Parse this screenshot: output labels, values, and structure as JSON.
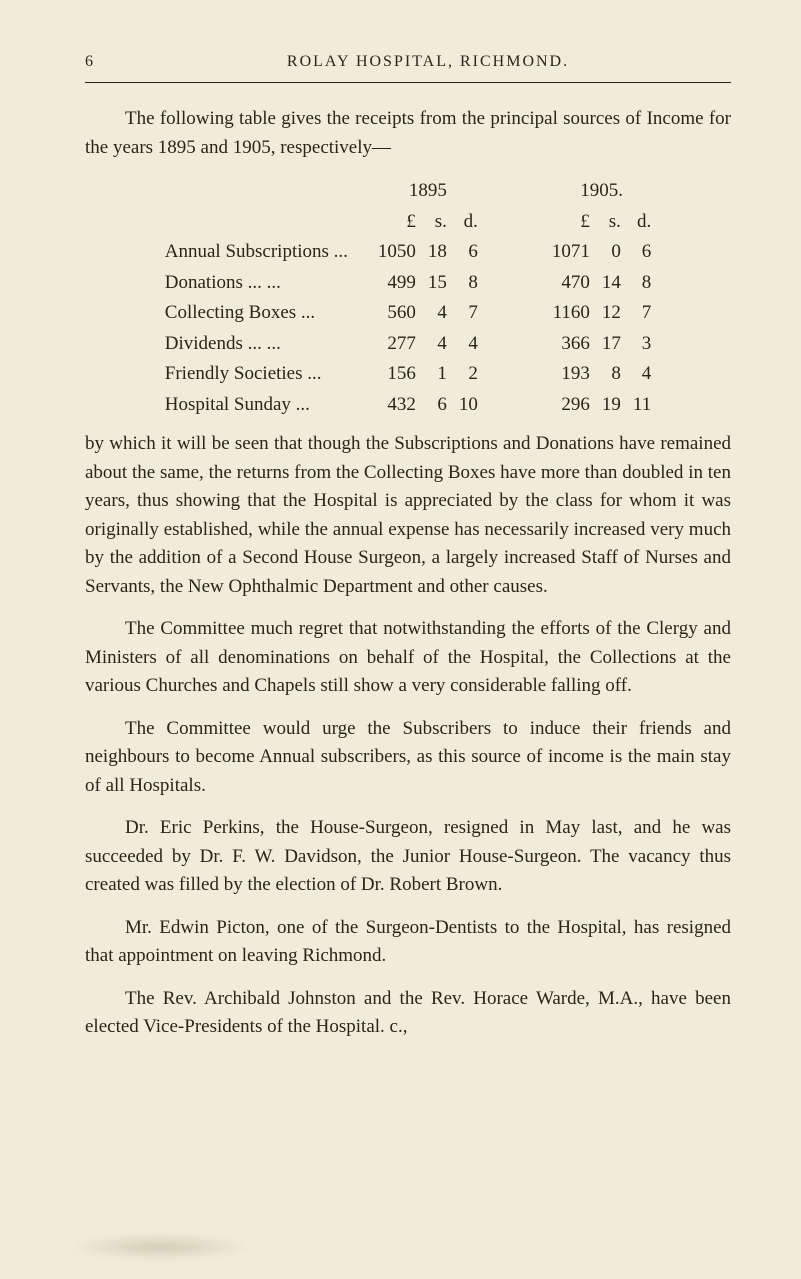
{
  "page_number": "6",
  "running_title": "ROLAY HOSPITAL, RICHMOND.",
  "intro": "The following table gives the receipts from the principal sources of Income for the years 1895 and 1905, respectively—",
  "table": {
    "year_a": "1895",
    "year_b": "1905.",
    "head_L": "£",
    "head_s": "s.",
    "head_d": "d.",
    "rows": [
      {
        "label": "Annual Subscriptions ...",
        "aL": "1050",
        "as": "18",
        "ad": "6",
        "bL": "1071",
        "bs": "0",
        "bd": "6"
      },
      {
        "label": "Donations   ...          ...",
        "aL": "499",
        "as": "15",
        "ad": "8",
        "bL": "470",
        "bs": "14",
        "bd": "8"
      },
      {
        "label": "Collecting Boxes       ...",
        "aL": "560",
        "as": "4",
        "ad": "7",
        "bL": "1160",
        "bs": "12",
        "bd": "7"
      },
      {
        "label": "Dividends   ...          ...",
        "aL": "277",
        "as": "4",
        "ad": "4",
        "bL": "366",
        "bs": "17",
        "bd": "3"
      },
      {
        "label": "Friendly Societies     ...",
        "aL": "156",
        "as": "1",
        "ad": "2",
        "bL": "193",
        "bs": "8",
        "bd": "4"
      },
      {
        "label": "Hospital Sunday        ...",
        "aL": "432",
        "as": "6",
        "ad": "10",
        "bL": "296",
        "bs": "19",
        "bd": "11"
      }
    ]
  },
  "para_after_table": "by which it will be seen that though the Subscriptions and Donations have remained about the same, the returns from the Collecting Boxes have more than doubled in ten years, thus showing that the Hospital is appreciated by the class for whom it was originally established, while the annual expense has necessarily increased very much by the addition of a Second House Surgeon, a largely increased Staff of Nurses and Servants, the New Ophthalmic Department and other causes.",
  "para2": "The Committee much regret that notwithstanding the efforts of the Clergy and Ministers of all denominations on behalf of the Hospital, the Collections at the various Churches and Chapels still show a very considerable falling off.",
  "para3": "The Committee would urge the Subscribers to induce their friends and neighbours to become Annual subscribers, as this source of income is the main stay of all Hospitals.",
  "para4": "Dr. Eric Perkins, the House-Surgeon, resigned in May last, and he was succeeded by Dr. F. W. Davidson, the Junior House-Surgeon. The vacancy thus created was filled by the election of Dr. Robert Brown.",
  "para5": "Mr. Edwin Picton, one of the Surgeon-Dentists to the Hospital, has resigned that appointment on leaving Richmond.",
  "para6": "The Rev. Archibald Johnston and the Rev. Horace Warde, M.A., have been elected Vice-Presidents of the Hospital.      c.,"
}
